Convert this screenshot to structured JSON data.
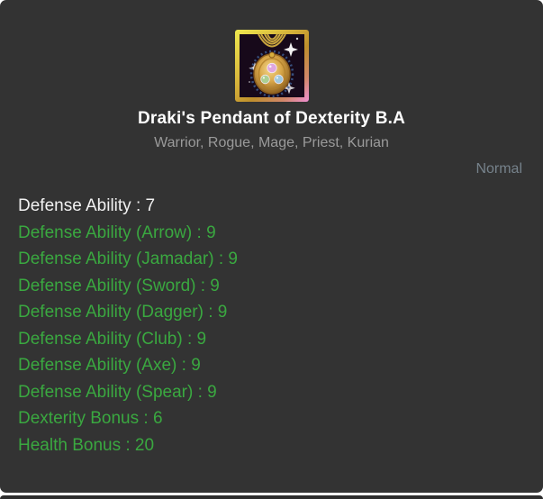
{
  "card": {
    "title": "Draki's Pendant of Dexterity B.A",
    "usable_classes": "Warrior, Rogue, Mage, Priest, Kurian",
    "grade_label": "Normal",
    "icon": "gold-pendant-with-three-gems",
    "stats": [
      {
        "text": "Defense Ability : 7",
        "kind": "base"
      },
      {
        "text": "Defense Ability (Arrow) : 9",
        "kind": "bonus"
      },
      {
        "text": "Defense Ability (Jamadar) : 9",
        "kind": "bonus"
      },
      {
        "text": "Defense Ability (Sword) : 9",
        "kind": "bonus"
      },
      {
        "text": "Defense Ability (Dagger) : 9",
        "kind": "bonus"
      },
      {
        "text": "Defense Ability (Club) : 9",
        "kind": "bonus"
      },
      {
        "text": "Defense Ability (Axe) : 9",
        "kind": "bonus"
      },
      {
        "text": "Defense Ability (Spear) : 9",
        "kind": "bonus"
      },
      {
        "text": "Dexterity Bonus : 6",
        "kind": "bonus"
      },
      {
        "text": "Health Bonus : 20",
        "kind": "bonus"
      }
    ]
  },
  "colors": {
    "card_background": "#333333",
    "title": "#ffffff",
    "classes": "#9a9a9a",
    "grade": "#76828b",
    "base_stat": "#f2f2f2",
    "bonus_stat": "#3aa840",
    "page_background": "#ffffff"
  }
}
